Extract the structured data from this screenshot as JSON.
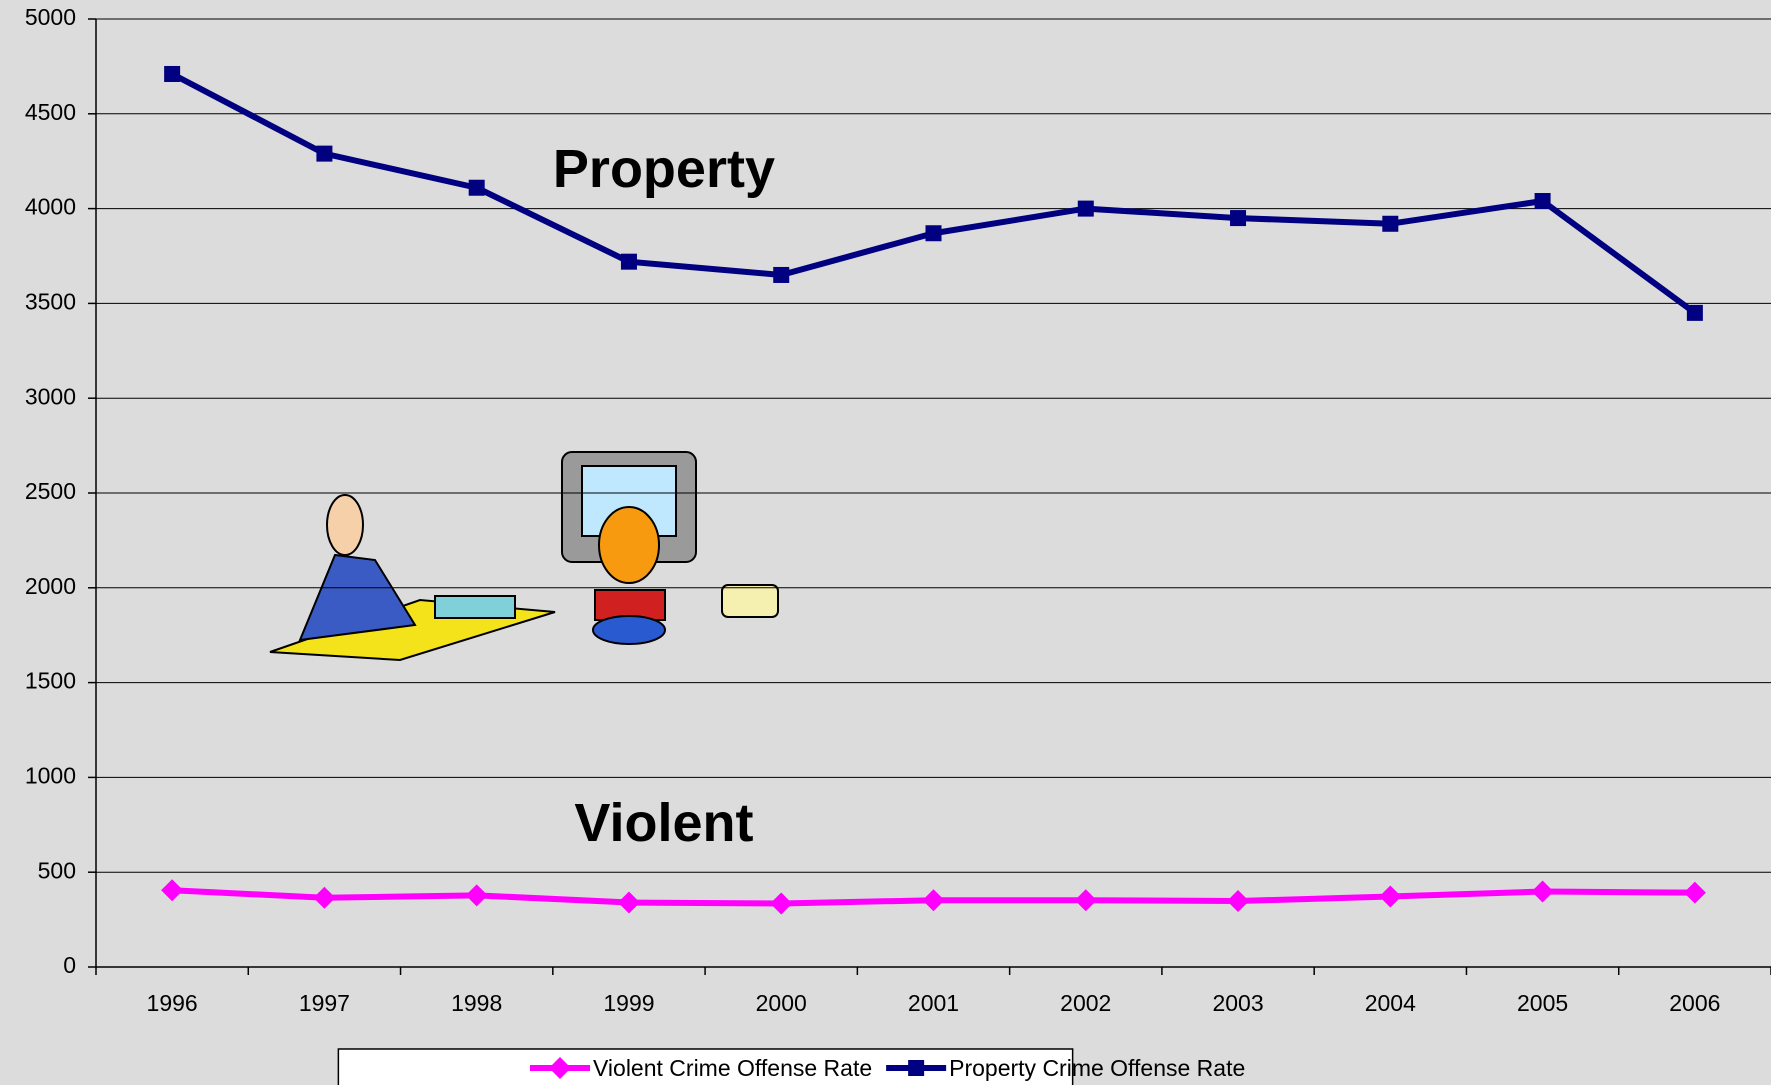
{
  "chart_data": {
    "type": "line",
    "categories": [
      "1996",
      "1997",
      "1998",
      "1999",
      "2000",
      "2001",
      "2002",
      "2003",
      "2004",
      "2005",
      "2006"
    ],
    "series": [
      {
        "name": "Violent Crime Offense Rate",
        "color": "#ff00ff",
        "marker": "diamond",
        "values": [
          405,
          365,
          378,
          340,
          335,
          352,
          352,
          348,
          372,
          398,
          392
        ]
      },
      {
        "name": "Property Crime Offense Rate",
        "color": "#000080",
        "marker": "square",
        "values": [
          4710,
          4290,
          4110,
          3720,
          3650,
          3870,
          4000,
          3950,
          3920,
          4040,
          3450
        ]
      }
    ],
    "annotations": [
      {
        "text": "Property",
        "x": "1999",
        "y": 4190
      },
      {
        "text": "Violent",
        "x": "1999",
        "y": 740
      }
    ],
    "ylim": [
      0,
      5000
    ],
    "yticks": [
      0,
      500,
      1000,
      1500,
      2000,
      2500,
      3000,
      3500,
      4000,
      4500,
      5000
    ],
    "grid": true,
    "legend": "bottom"
  }
}
